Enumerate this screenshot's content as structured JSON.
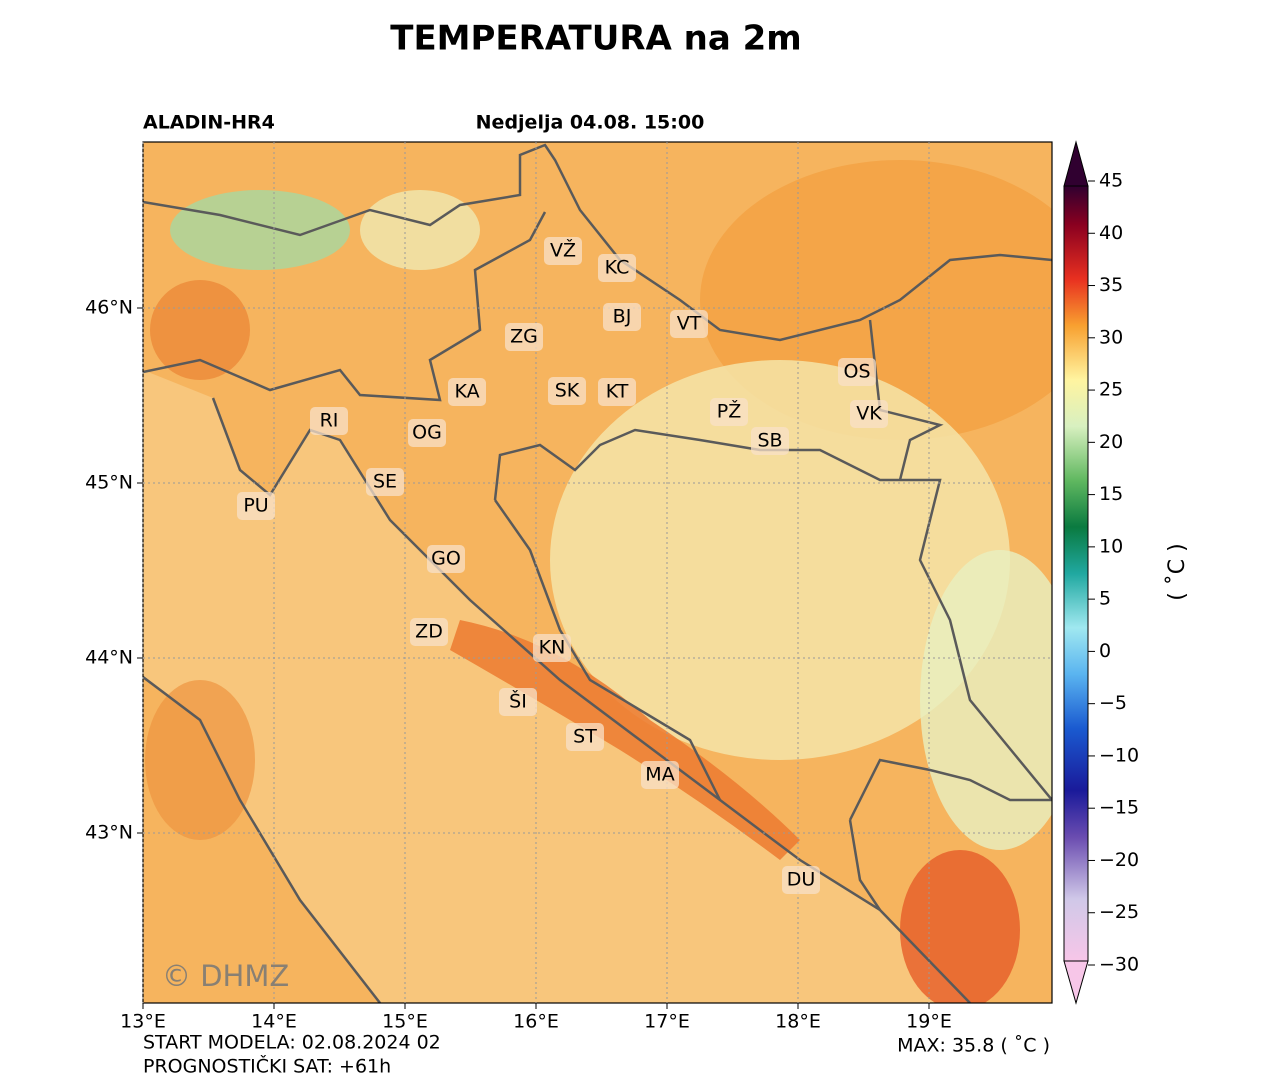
{
  "title": "TEMPERATURA na 2m",
  "model": "ALADIN-HR4",
  "valid_time": "Nedjelja 04.08. 15:00",
  "map": {
    "lon_ticks": [
      {
        "value": 13,
        "label": "13°E"
      },
      {
        "value": 14,
        "label": "14°E"
      },
      {
        "value": 15,
        "label": "15°E"
      },
      {
        "value": 16,
        "label": "16°E"
      },
      {
        "value": 17,
        "label": "17°E"
      },
      {
        "value": 18,
        "label": "18°E"
      },
      {
        "value": 19,
        "label": "19°E"
      }
    ],
    "lat_ticks": [
      {
        "value": 46,
        "label": "46°N"
      },
      {
        "value": 45,
        "label": "45°N"
      },
      {
        "value": 44,
        "label": "44°N"
      },
      {
        "value": 43,
        "label": "43°N"
      }
    ],
    "cities": [
      "VŽ",
      "KC",
      "BJ",
      "VT",
      "ZG",
      "OS",
      "KA",
      "SK",
      "KT",
      "PŽ",
      "VK",
      "RI",
      "OG",
      "SB",
      "SE",
      "PU",
      "GO",
      "ZD",
      "KN",
      "ŠI",
      "ST",
      "MA",
      "DU"
    ],
    "watermark": "© DHMZ"
  },
  "colorbar": {
    "label": "( ˚C )",
    "ticks": [
      45,
      40,
      35,
      30,
      25,
      20,
      15,
      10,
      5,
      0,
      {
        "value": -5,
        "label": "−5"
      },
      {
        "value": -10,
        "label": "−10"
      },
      {
        "value": -15,
        "label": "−15"
      },
      {
        "value": -20,
        "label": "−20"
      },
      {
        "value": -25,
        "label": "−25"
      },
      {
        "value": -30,
        "label": "−30"
      }
    ]
  },
  "footer": {
    "start": "START MODELA: 02.08.2024 02",
    "lead": "PROGNOSTIČKI SAT: +61h",
    "max": "MAX: 35.8 ( ˚C )"
  }
}
